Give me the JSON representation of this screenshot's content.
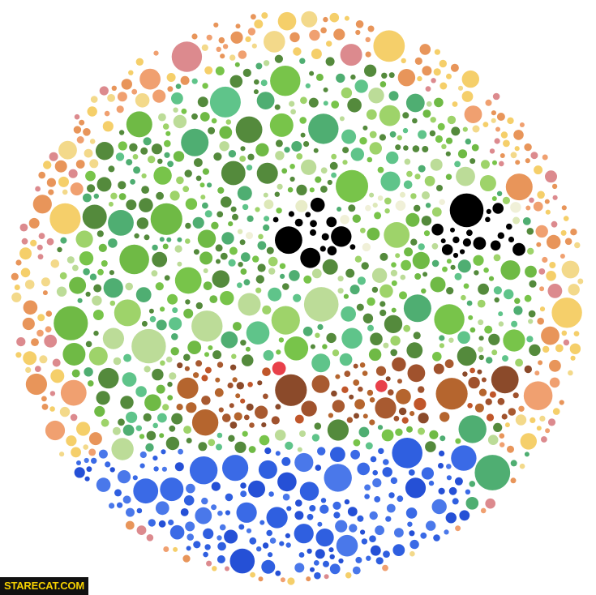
{
  "watermark": "STARECAT.COM"
}
